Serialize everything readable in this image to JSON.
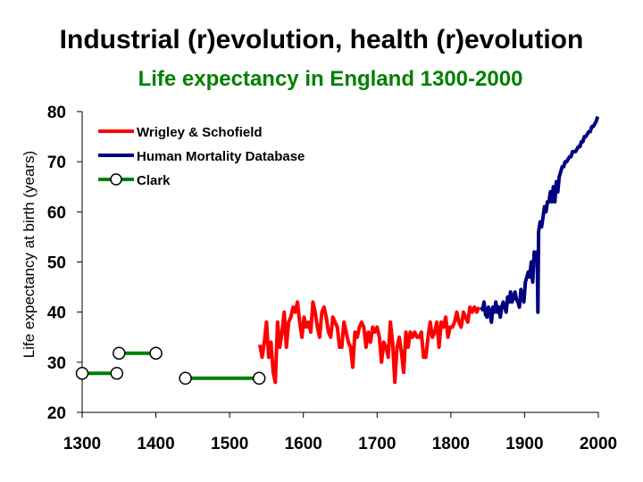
{
  "slide": {
    "title": "Industrial (r)evolution, health (r)evolution"
  },
  "chart_data": {
    "type": "line",
    "title": "Life expectancy in England 1300-2000",
    "xlabel": "",
    "ylabel": "Life expectancy at birth (years)",
    "xlim": [
      1300,
      2000
    ],
    "ylim": [
      20,
      80
    ],
    "xticks": [
      1300,
      1400,
      1500,
      1600,
      1700,
      1800,
      1900,
      2000
    ],
    "yticks": [
      20,
      30,
      40,
      50,
      60,
      70,
      80
    ],
    "grid": false,
    "legend_position": "top-left",
    "colors": {
      "title": "#008000",
      "wrigley": "#ff0000",
      "hmd": "#000080",
      "clark": "#008000"
    },
    "series": [
      {
        "name": "Wrigley & Schofield",
        "style": "line",
        "x": [
          1541,
          1544,
          1547,
          1550,
          1553,
          1556,
          1559,
          1562,
          1565,
          1568,
          1571,
          1574,
          1577,
          1580,
          1583,
          1586,
          1589,
          1592,
          1595,
          1598,
          1601,
          1604,
          1607,
          1610,
          1613,
          1616,
          1619,
          1622,
          1625,
          1628,
          1631,
          1634,
          1637,
          1640,
          1643,
          1646,
          1649,
          1652,
          1655,
          1658,
          1661,
          1664,
          1667,
          1670,
          1673,
          1676,
          1679,
          1682,
          1685,
          1688,
          1691,
          1694,
          1697,
          1700,
          1703,
          1706,
          1709,
          1712,
          1715,
          1718,
          1721,
          1724,
          1727,
          1730,
          1733,
          1736,
          1739,
          1742,
          1745,
          1748,
          1751,
          1754,
          1757,
          1760,
          1763,
          1766,
          1769,
          1772,
          1775,
          1778,
          1781,
          1784,
          1787,
          1790,
          1793,
          1796,
          1799,
          1802,
          1805,
          1808,
          1811,
          1814,
          1817,
          1820,
          1823,
          1826,
          1829,
          1832,
          1835,
          1838
        ],
        "y": [
          33.5,
          31,
          34,
          38,
          31,
          34,
          28,
          26,
          38,
          33,
          36,
          40,
          33,
          38,
          39,
          41,
          40,
          42,
          38,
          35,
          39,
          37,
          38,
          36,
          42,
          40,
          37,
          35,
          40,
          41,
          39,
          36,
          35,
          39,
          38,
          37,
          33,
          33,
          38,
          36,
          34,
          33,
          29,
          36,
          35,
          37,
          38,
          37,
          33,
          36,
          34,
          37,
          36,
          37,
          35,
          30,
          34,
          33,
          31,
          38,
          34,
          26,
          33,
          35,
          32,
          28,
          36,
          33,
          36,
          35,
          36,
          35,
          35,
          36,
          31,
          31,
          35,
          38,
          35,
          36,
          38,
          33,
          38,
          37,
          39,
          35,
          37,
          37,
          38,
          40,
          38,
          37,
          40,
          39,
          38,
          41,
          40,
          41,
          40,
          41
        ]
      },
      {
        "name": "Human Mortality Database",
        "style": "line",
        "x": [
          1841,
          1843,
          1845,
          1847,
          1849,
          1851,
          1853,
          1855,
          1857,
          1859,
          1861,
          1863,
          1865,
          1867,
          1869,
          1871,
          1873,
          1875,
          1877,
          1879,
          1881,
          1883,
          1885,
          1887,
          1889,
          1891,
          1893,
          1895,
          1897,
          1899,
          1901,
          1903,
          1905,
          1907,
          1909,
          1911,
          1913,
          1915,
          1917,
          1918,
          1919,
          1921,
          1923,
          1925,
          1927,
          1929,
          1931,
          1933,
          1935,
          1937,
          1939,
          1941,
          1943,
          1945,
          1947,
          1949,
          1951,
          1953,
          1955,
          1957,
          1959,
          1961,
          1963,
          1965,
          1967,
          1969,
          1971,
          1973,
          1975,
          1977,
          1979,
          1981,
          1983,
          1985,
          1987,
          1989,
          1991,
          1993,
          1995,
          1997,
          1999
        ],
        "y": [
          41,
          40.5,
          42,
          39.5,
          39,
          41,
          40,
          38,
          41,
          40,
          42,
          40,
          41,
          39,
          41,
          42,
          41,
          40,
          43,
          42,
          44,
          42,
          43,
          44,
          42.5,
          42,
          41,
          44.5,
          43,
          42,
          46,
          47,
          48,
          47,
          50,
          46,
          52,
          50,
          52,
          40,
          56,
          58,
          57,
          59,
          61,
          60,
          62,
          62,
          64,
          62,
          65,
          62,
          66,
          64,
          67,
          68,
          69,
          69,
          70,
          70,
          70.5,
          71,
          71,
          72,
          72,
          72,
          72.5,
          73,
          73,
          74,
          74,
          75,
          75,
          75.5,
          76,
          76,
          77,
          77,
          77.5,
          78,
          79
        ]
      },
      {
        "name": "Clark",
        "style": "step",
        "segments": [
          {
            "x": [
              1300,
              1347
            ],
            "y": [
              27.8,
              27.8
            ]
          },
          {
            "x": [
              1350,
              1400
            ],
            "y": [
              31.8,
              31.8
            ]
          },
          {
            "x": [
              1440,
              1540
            ],
            "y": [
              26.8,
              26.8
            ]
          }
        ],
        "markers": [
          {
            "x": 1300,
            "y": 27.8
          },
          {
            "x": 1347,
            "y": 27.8
          },
          {
            "x": 1350,
            "y": 31.8
          },
          {
            "x": 1400,
            "y": 31.8
          },
          {
            "x": 1440,
            "y": 26.8
          },
          {
            "x": 1540,
            "y": 26.8
          }
        ]
      }
    ]
  }
}
